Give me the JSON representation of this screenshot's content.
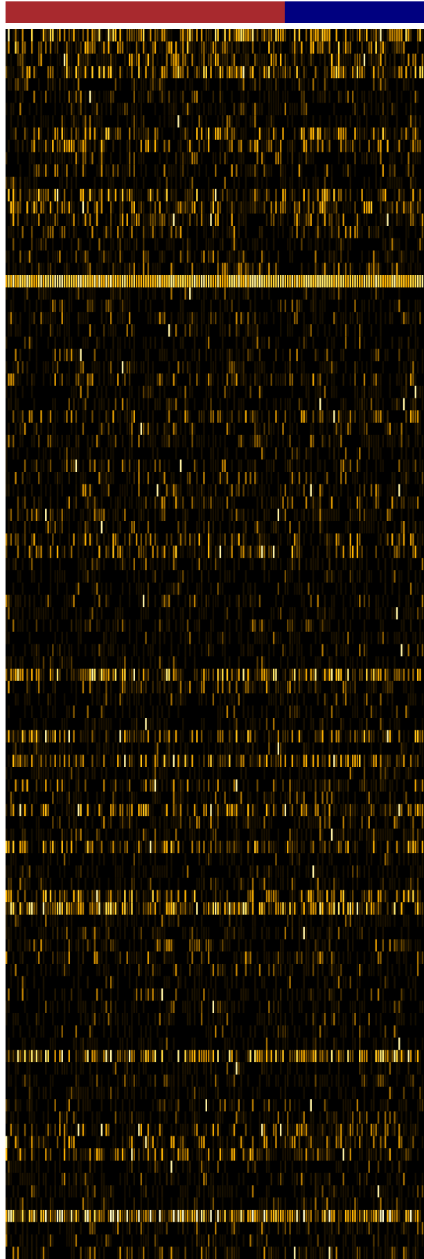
{
  "chart_data": {
    "type": "heatmap",
    "title": "",
    "xlabel": "",
    "ylabel": "",
    "column_groups": [
      {
        "name": "",
        "color": "#A8292E",
        "fraction": 0.667
      },
      {
        "name": "",
        "color": "#000080",
        "fraction": 0.333
      }
    ],
    "n_rows": 100,
    "n_cols": 180,
    "color_scale": [
      "#000000",
      "#3A2600",
      "#7A5200",
      "#C48400",
      "#FFB300",
      "#FFE04D",
      "#FFF9C8"
    ],
    "value_range": [
      0,
      1
    ],
    "background_color": "#000000",
    "row_intensity": [
      0.42,
      0.35,
      0.3,
      0.38,
      0.12,
      0.14,
      0.09,
      0.08,
      0.32,
      0.28,
      0.12,
      0.16,
      0.08,
      0.34,
      0.3,
      0.24,
      0.16,
      0.1,
      0.14,
      0.18,
      0.98,
      0.09,
      0.12,
      0.16,
      0.08,
      0.08,
      0.14,
      0.1,
      0.18,
      0.1,
      0.12,
      0.22,
      0.14,
      0.1,
      0.08,
      0.12,
      0.12,
      0.14,
      0.16,
      0.14,
      0.12,
      0.24,
      0.3,
      0.1,
      0.08,
      0.06,
      0.12,
      0.06,
      0.12,
      0.08,
      0.08,
      0.08,
      0.44,
      0.2,
      0.06,
      0.1,
      0.08,
      0.32,
      0.06,
      0.34,
      0.1,
      0.22,
      0.08,
      0.3,
      0.14,
      0.1,
      0.3,
      0.08,
      0.06,
      0.1,
      0.34,
      0.46,
      0.06,
      0.1,
      0.16,
      0.2,
      0.12,
      0.08,
      0.12,
      0.08,
      0.06,
      0.1,
      0.06,
      0.46,
      0.06,
      0.06,
      0.08,
      0.1,
      0.08,
      0.22,
      0.24,
      0.26,
      0.1,
      0.12,
      0.08,
      0.1,
      0.6,
      0.12,
      0.08,
      0.16
    ]
  }
}
